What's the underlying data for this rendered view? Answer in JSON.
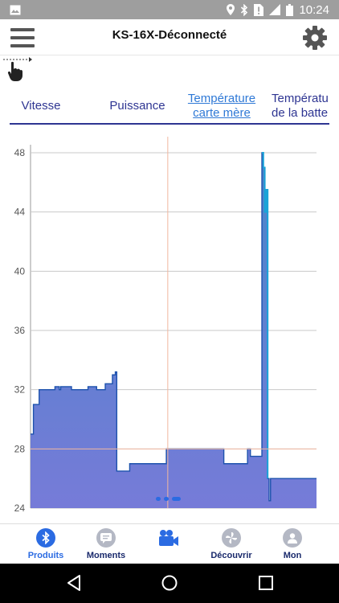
{
  "status_bar": {
    "time": "10:24",
    "icons": [
      "image-icon",
      "location-icon",
      "bluetooth-icon",
      "sim-alert-icon",
      "signal-icon",
      "battery-icon"
    ]
  },
  "app_bar": {
    "title": "KS-16X-Déconnecté",
    "menu_icon": "hamburger-menu-icon",
    "settings_icon": "gear-icon"
  },
  "tabs": [
    {
      "line1": "Vitesse",
      "line2": "",
      "active": false
    },
    {
      "line1": "Puissance",
      "line2": "",
      "active": false
    },
    {
      "line1": "Température",
      "line2": "carte mère",
      "active": true
    },
    {
      "line1": "Températu",
      "line2": "de la batte",
      "active": false
    }
  ],
  "chart_data": {
    "type": "area",
    "yticks": [
      "48",
      "44",
      "40",
      "36",
      "32",
      "28",
      "24"
    ],
    "ylim": [
      24,
      48
    ],
    "grid": true,
    "x": [
      0,
      4,
      4,
      8,
      8,
      12,
      12,
      34,
      34,
      40,
      40,
      42,
      42,
      57,
      57,
      80,
      80,
      92,
      92,
      104,
      104,
      114,
      114,
      118,
      118,
      120,
      120,
      138,
      138,
      189,
      189,
      191,
      191,
      269,
      269,
      302,
      302,
      306,
      306,
      322,
      322,
      324,
      324,
      326,
      326,
      328,
      328,
      330,
      330,
      332,
      332,
      334,
      334,
      336,
      336,
      338,
      338,
      398
    ],
    "y": [
      29,
      29,
      31,
      31,
      31,
      31,
      32,
      32,
      32.2,
      32.2,
      32,
      32,
      32.2,
      32.2,
      32,
      32,
      32.2,
      32.2,
      32,
      32,
      32.4,
      32.4,
      33,
      33,
      33.2,
      33.2,
      26.5,
      26.5,
      27,
      27,
      28,
      28,
      28,
      28,
      27,
      27,
      28,
      28,
      27.5,
      27.5,
      48,
      48,
      47,
      47,
      44,
      44,
      45.5,
      45.5,
      26,
      26,
      24.5,
      24.5,
      26,
      26,
      26,
      26,
      26,
      26
    ],
    "crosshair": {
      "x": 191,
      "y": 28
    },
    "colors": {
      "fill_top": "#3f7fc6",
      "fill_bottom": "#6f74d6",
      "line": "#1d52ad",
      "spike": "#1aa3d8",
      "crosshair": "#f2b8a0",
      "grid": "#c8c8c8"
    }
  },
  "bottom_nav": [
    {
      "label": "Produits",
      "icon": "bluetooth-icon",
      "active": true
    },
    {
      "label": "Moments",
      "icon": "chat-icon",
      "active": false
    },
    {
      "label": "",
      "icon": "video-camera-icon",
      "active": false
    },
    {
      "label": "Découvrir",
      "icon": "pinwheel-icon",
      "active": false
    },
    {
      "label": "Mon",
      "icon": "person-icon",
      "active": false
    }
  ],
  "android_nav": [
    "back-icon",
    "home-icon",
    "recents-icon"
  ]
}
